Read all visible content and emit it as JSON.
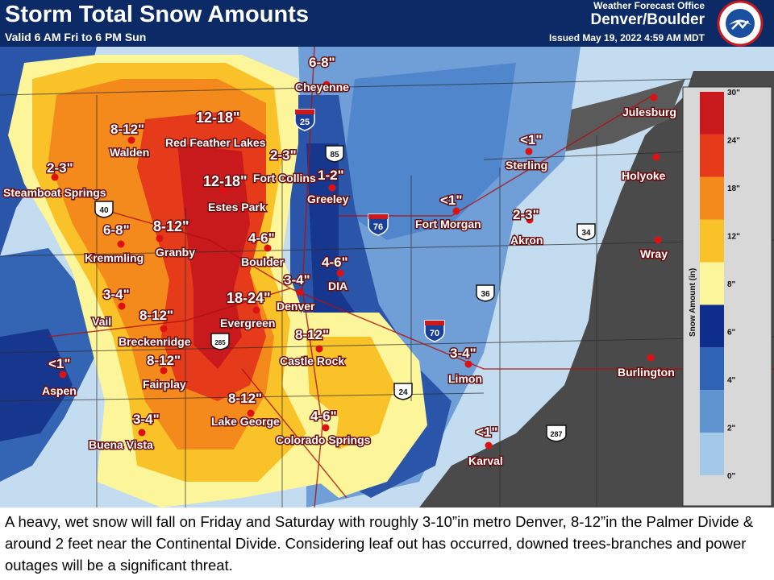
{
  "header": {
    "title": "Storm Total Snow Amounts",
    "valid": "Valid 6 AM Fri to 6 PM Sun",
    "wfo": "Weather Forecast Office",
    "office": "Denver/Boulder",
    "issued": "Issued May 19, 2022 4:59 AM MDT"
  },
  "logo": {
    "text": "NATIONAL WEATHER SERVICE"
  },
  "legend": {
    "title": "Snow Amount (in)",
    "ticks": [
      "30\"",
      "24\"",
      "18\"",
      "12\"",
      "8\"",
      "6\"",
      "4\"",
      "2\"",
      "0\""
    ],
    "colors": [
      "#c8191c",
      "#e53b1a",
      "#f58a1c",
      "#f9c228",
      "#fdf59a",
      "#0f2e8c",
      "#2f63b6",
      "#5f94d0",
      "#a4c8e8"
    ]
  },
  "cities": [
    {
      "name": "Cheyenne"
    },
    {
      "name": "Julesburg"
    },
    {
      "name": "Walden"
    },
    {
      "name": "Red Feather Lakes"
    },
    {
      "name": "Sterling"
    },
    {
      "name": "Holyoke"
    },
    {
      "name": "Steamboat Springs"
    },
    {
      "name": "Fort Collins"
    },
    {
      "name": "Greeley"
    },
    {
      "name": "Estes Park"
    },
    {
      "name": "Fort Morgan"
    },
    {
      "name": "Akron"
    },
    {
      "name": "Kremmling"
    },
    {
      "name": "Granby"
    },
    {
      "name": "Boulder"
    },
    {
      "name": "Wray"
    },
    {
      "name": "DIA"
    },
    {
      "name": "Denver"
    },
    {
      "name": "Vail"
    },
    {
      "name": "Evergreen"
    },
    {
      "name": "Breckenridge"
    },
    {
      "name": "Castle Rock"
    },
    {
      "name": "Aspen"
    },
    {
      "name": "Fairplay"
    },
    {
      "name": "Limon"
    },
    {
      "name": "Burlington"
    },
    {
      "name": "Lake George"
    },
    {
      "name": "Colorado Springs"
    },
    {
      "name": "Buena Vista"
    },
    {
      "name": "Karval"
    }
  ],
  "amounts": [
    {
      "text": "6-8\""
    },
    {
      "text": "12-18\""
    },
    {
      "text": "8-12\""
    },
    {
      "text": "2-3\""
    },
    {
      "text": "<1\""
    },
    {
      "text": "2-3\""
    },
    {
      "text": "12-18\""
    },
    {
      "text": "1-2\""
    },
    {
      "text": "<1\""
    },
    {
      "text": "2-3\""
    },
    {
      "text": "6-8\""
    },
    {
      "text": "8-12\""
    },
    {
      "text": "4-6\""
    },
    {
      "text": "4-6\""
    },
    {
      "text": "3-4\""
    },
    {
      "text": "3-4\""
    },
    {
      "text": "18-24\""
    },
    {
      "text": "8-12\""
    },
    {
      "text": "8-12\""
    },
    {
      "text": "<1\""
    },
    {
      "text": "8-12\""
    },
    {
      "text": "3-4\""
    },
    {
      "text": "8-12\""
    },
    {
      "text": "4-6\""
    },
    {
      "text": "3-4\""
    },
    {
      "text": "<1\""
    }
  ],
  "highways": [
    "25",
    "85",
    "76",
    "34",
    "36",
    "70",
    "24",
    "287",
    "40",
    "285"
  ],
  "caption": "A heavy, wet snow will fall on Friday and Saturday with roughly 3-10”in metro Denver, 8-12”in the Palmer Divide & around 2 feet near the Continental Divide. Considering leaf out has occurred, downed trees-branches and power outages will be a significant threat."
}
